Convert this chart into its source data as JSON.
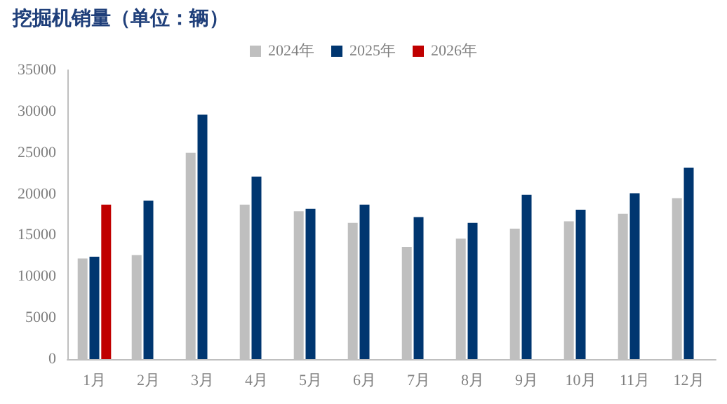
{
  "chart_data": {
    "type": "bar",
    "title": "挖掘机销量（单位：辆）",
    "categories": [
      "1月",
      "2月",
      "3月",
      "4月",
      "5月",
      "6月",
      "7月",
      "8月",
      "9月",
      "10月",
      "11月",
      "12月"
    ],
    "series": [
      {
        "name": "2024年",
        "color": "#bfbfbf",
        "values": [
          12200,
          12600,
          25000,
          18700,
          17900,
          16500,
          13600,
          14600,
          15800,
          16700,
          17600,
          19500
        ]
      },
      {
        "name": "2025年",
        "color": "#003670",
        "values": [
          12400,
          19200,
          29600,
          22100,
          18200,
          18700,
          17200,
          16500,
          19900,
          18100,
          20100,
          23200
        ]
      },
      {
        "name": "2026年",
        "color": "#c00000",
        "values": [
          18700,
          null,
          null,
          null,
          null,
          null,
          null,
          null,
          null,
          null,
          null,
          null
        ]
      }
    ],
    "ylim": [
      0,
      35000
    ],
    "yticks": [
      0,
      5000,
      10000,
      15000,
      20000,
      25000,
      30000,
      35000
    ],
    "grid": false,
    "legend": "top"
  }
}
